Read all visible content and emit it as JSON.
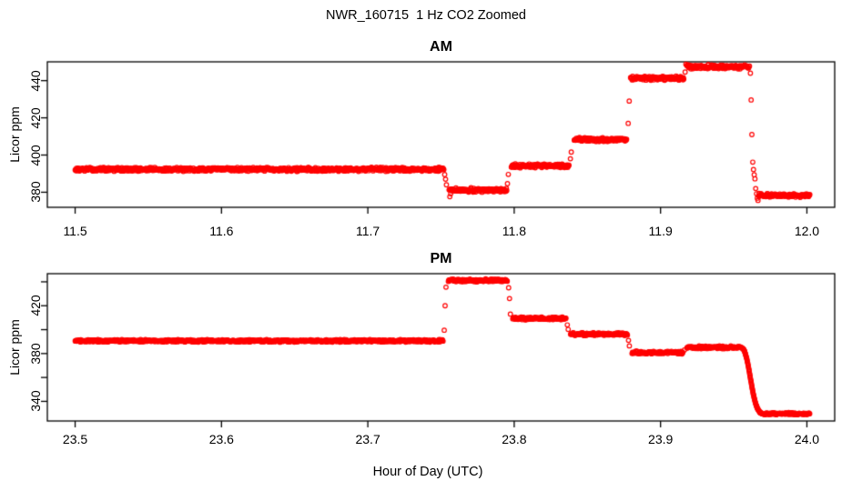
{
  "figure": {
    "title": "NWR_160715  1 Hz CO2 Zoomed",
    "xlabel": "Hour of Day (UTC)",
    "background_color": "#ffffff",
    "axis_color": "#000000",
    "point_color": "#ff0000"
  },
  "chart_data": [
    {
      "type": "scatter",
      "title": "AM",
      "ylabel": "Licor ppm",
      "marker": "open-circle",
      "color": "#ff0000",
      "grid": false,
      "xlim": [
        11.481,
        12.019
      ],
      "ylim": [
        371.9,
        450.1
      ],
      "x_ticks": [
        {
          "value": 11.5,
          "label": "11.5"
        },
        {
          "value": 11.6,
          "label": "11.6"
        },
        {
          "value": 11.7,
          "label": "11.7"
        },
        {
          "value": 11.8,
          "label": "11.8"
        },
        {
          "value": 11.9,
          "label": "11.9"
        },
        {
          "value": 12.0,
          "label": "12.0"
        }
      ],
      "y_ticks": [
        {
          "value": 380,
          "label": "380"
        },
        {
          "value": 400,
          "label": "400"
        },
        {
          "value": 420,
          "label": "420"
        },
        {
          "value": 440,
          "label": "440"
        }
      ],
      "segments": [
        {
          "x_start": 11.5,
          "x_end": 11.752,
          "value": 392.3,
          "jitter": 0.8
        },
        {
          "x_start": 11.7555,
          "x_end": 11.795,
          "value": 381.2,
          "jitter": 0.9
        },
        {
          "x_start": 11.798,
          "x_end": 11.8375,
          "value": 394.2,
          "jitter": 0.8
        },
        {
          "x_start": 11.841,
          "x_end": 11.877,
          "value": 408.3,
          "jitter": 0.8
        },
        {
          "x_start": 11.8795,
          "x_end": 11.916,
          "value": 441.4,
          "jitter": 0.9
        },
        {
          "x_start": 11.918,
          "x_end": 11.961,
          "value": 447.4,
          "jitter": 0.9
        },
        {
          "x_start": 11.967,
          "x_end": 12.002,
          "value": 378.3,
          "jitter": 0.8
        }
      ],
      "transition_points": [
        [
          11.7525,
          389.5
        ],
        [
          11.7531,
          387.0
        ],
        [
          11.7537,
          384.0
        ],
        [
          11.756,
          377.6
        ],
        [
          11.7566,
          379.2
        ],
        [
          11.7954,
          384.6
        ],
        [
          11.796,
          389.6
        ],
        [
          11.8384,
          398.0
        ],
        [
          11.839,
          401.6
        ],
        [
          11.8779,
          417.0
        ],
        [
          11.8786,
          429.0
        ],
        [
          11.9168,
          444.6
        ],
        [
          11.9173,
          448.8
        ],
        [
          11.9614,
          444.0
        ],
        [
          11.9619,
          429.6
        ],
        [
          11.9624,
          411.0
        ],
        [
          11.963,
          396.2
        ],
        [
          11.9635,
          392.2
        ],
        [
          11.964,
          389.4
        ],
        [
          11.9645,
          387.2
        ],
        [
          11.965,
          382.0
        ],
        [
          11.9656,
          379.2
        ],
        [
          11.9661,
          376.8
        ],
        [
          11.9666,
          375.6
        ]
      ],
      "decay_points": []
    },
    {
      "type": "scatter",
      "title": "PM",
      "ylabel": "Licor ppm",
      "marker": "open-circle",
      "color": "#ff0000",
      "grid": false,
      "xlim": [
        23.481,
        24.019
      ],
      "ylim": [
        323.6,
        446.8
      ],
      "x_ticks": [
        {
          "value": 23.5,
          "label": "23.5"
        },
        {
          "value": 23.6,
          "label": "23.6"
        },
        {
          "value": 23.7,
          "label": "23.7"
        },
        {
          "value": 23.8,
          "label": "23.8"
        },
        {
          "value": 23.9,
          "label": "23.9"
        },
        {
          "value": 24.0,
          "label": "24.0"
        }
      ],
      "y_ticks": [
        {
          "value": 340,
          "label": "340"
        },
        {
          "value": 360,
          "label": ""
        },
        {
          "value": 380,
          "label": "380"
        },
        {
          "value": 400,
          "label": ""
        },
        {
          "value": 420,
          "label": "420"
        },
        {
          "value": 440,
          "label": ""
        }
      ],
      "segments": [
        {
          "x_start": 23.5,
          "x_end": 23.7515,
          "value": 390.6,
          "jitter": 0.8
        },
        {
          "x_start": 23.755,
          "x_end": 23.7955,
          "value": 441.2,
          "jitter": 0.9
        },
        {
          "x_start": 23.799,
          "x_end": 23.8355,
          "value": 409.4,
          "jitter": 0.9
        },
        {
          "x_start": 23.8385,
          "x_end": 23.8775,
          "value": 396.2,
          "jitter": 0.9
        },
        {
          "x_start": 23.8805,
          "x_end": 23.9155,
          "value": 380.8,
          "jitter": 0.9
        },
        {
          "x_start": 23.918,
          "x_end": 23.956,
          "value": 385.2,
          "jitter": 0.9
        },
        {
          "x_start": 23.97,
          "x_end": 24.002,
          "value": 329.6,
          "jitter": 0.7
        }
      ],
      "transition_points": [
        [
          23.7522,
          399.5
        ],
        [
          23.7528,
          420.0
        ],
        [
          23.7534,
          435.5
        ],
        [
          23.7962,
          435.0
        ],
        [
          23.7968,
          426.0
        ],
        [
          23.7974,
          413.0
        ],
        [
          23.8363,
          404.0
        ],
        [
          23.8369,
          400.2
        ],
        [
          23.8781,
          391.0
        ],
        [
          23.8787,
          386.4
        ],
        [
          23.9163,
          383.0
        ]
      ],
      "decay_points": [
        [
          23.9565,
          384.0
        ],
        [
          23.9572,
          382.5
        ],
        [
          23.9578,
          380.5
        ],
        [
          23.9584,
          378.0
        ],
        [
          23.959,
          375.2
        ],
        [
          23.9596,
          371.8
        ],
        [
          23.9602,
          368.0
        ],
        [
          23.9608,
          363.8
        ],
        [
          23.9614,
          359.5
        ],
        [
          23.962,
          355.2
        ],
        [
          23.9626,
          351.0
        ],
        [
          23.9632,
          347.2
        ],
        [
          23.9638,
          343.8
        ],
        [
          23.9644,
          340.8
        ],
        [
          23.965,
          338.2
        ],
        [
          23.9656,
          336.0
        ],
        [
          23.9662,
          334.2
        ],
        [
          23.9668,
          332.8
        ],
        [
          23.9674,
          331.7
        ],
        [
          23.968,
          330.9
        ],
        [
          23.9686,
          330.3
        ],
        [
          23.9692,
          330.0
        ],
        [
          23.9698,
          329.8
        ]
      ]
    }
  ]
}
